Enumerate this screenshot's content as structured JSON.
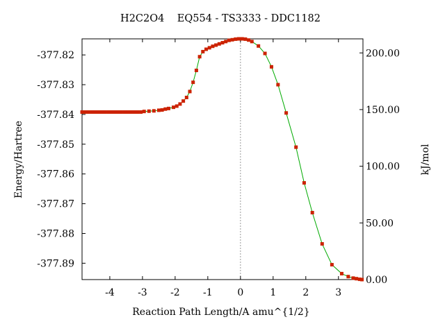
{
  "chart_data": {
    "type": "line",
    "title": "H2C2O4    EQ554 - TS3333 - DDC1182",
    "xlabel": "Reaction Path Length/A amu^{1/2}",
    "ylabel": "Energy/Hartree",
    "y2label": "kJ/mol",
    "xlim": [
      -4.85,
      3.75
    ],
    "ylim": [
      -377.8955,
      -377.8146
    ],
    "y2lim": [
      0.0,
      212.4
    ],
    "x_ticks": [
      -4,
      -3,
      -2,
      -1,
      0,
      1,
      2,
      3
    ],
    "x_tick_labels": [
      "-4",
      "-3",
      "-2",
      "-1",
      "0",
      "1",
      "2",
      "3"
    ],
    "y_ticks": [
      -377.82,
      -377.83,
      -377.84,
      -377.85,
      -377.86,
      -377.87,
      -377.88,
      -377.89
    ],
    "y_tick_labels": [
      "-377.82",
      "-377.83",
      "-377.84",
      "-377.85",
      "-377.86",
      "-377.87",
      "-377.88",
      "-377.89"
    ],
    "y2_ticks": [
      200.0,
      150.0,
      100.0,
      50.0,
      0.0
    ],
    "y2_tick_labels": [
      "200.00",
      "150.00",
      "100.00",
      "50.00",
      "0.00"
    ],
    "ts_marker_x": 0.0,
    "curve_color": "#00aa00",
    "point_color": "#cc2200",
    "axis_color": "#000000",
    "marker_line_color": "#999999",
    "series": [
      {
        "x": [
          -4.85,
          -4.75,
          -4.65,
          -4.55,
          -4.45,
          -4.35,
          -4.25,
          -4.15,
          -4.05,
          -3.95,
          -3.85,
          -3.75,
          -3.65,
          -3.55,
          -3.45,
          -3.35,
          -3.25,
          -3.15,
          -3.05,
          -2.95,
          -2.8,
          -2.65,
          -2.5,
          -2.4,
          -2.3,
          -2.2,
          -2.05,
          -1.95,
          -1.85,
          -1.75,
          -1.65,
          -1.55,
          -1.45,
          -1.35,
          -1.25,
          -1.15,
          -1.05,
          -0.95,
          -0.85,
          -0.75,
          -0.65,
          -0.55,
          -0.45,
          -0.35,
          -0.25,
          -0.15,
          -0.05,
          0.05,
          0.15,
          0.25,
          0.35,
          0.55,
          0.75,
          0.95,
          1.15,
          1.4,
          1.7,
          1.95,
          2.2,
          2.5,
          2.8,
          3.1,
          3.3,
          3.45,
          3.55,
          3.65,
          3.72
        ],
        "y": [
          -377.8392,
          -377.8392,
          -377.8392,
          -377.8392,
          -377.8392,
          -377.8392,
          -377.8392,
          -377.8392,
          -377.8392,
          -377.8392,
          -377.8392,
          -377.8392,
          -377.8392,
          -377.8392,
          -377.8392,
          -377.8392,
          -377.8392,
          -377.8392,
          -377.8392,
          -377.839,
          -377.8389,
          -377.8388,
          -377.8386,
          -377.8385,
          -377.8382,
          -377.838,
          -377.8376,
          -377.8372,
          -377.8365,
          -377.8355,
          -377.8343,
          -377.8323,
          -377.8292,
          -377.8252,
          -377.8206,
          -377.8189,
          -377.8181,
          -377.8176,
          -377.8171,
          -377.8167,
          -377.8163,
          -377.8159,
          -377.8155,
          -377.8151,
          -377.8149,
          -377.8147,
          -377.8146,
          -377.8146,
          -377.8147,
          -377.815,
          -377.8155,
          -377.817,
          -377.8195,
          -377.824,
          -377.83,
          -377.8395,
          -377.851,
          -377.863,
          -377.873,
          -377.8835,
          -377.8905,
          -377.8935,
          -377.8945,
          -377.895,
          -377.8952,
          -377.8954,
          -377.8955
        ]
      }
    ]
  }
}
